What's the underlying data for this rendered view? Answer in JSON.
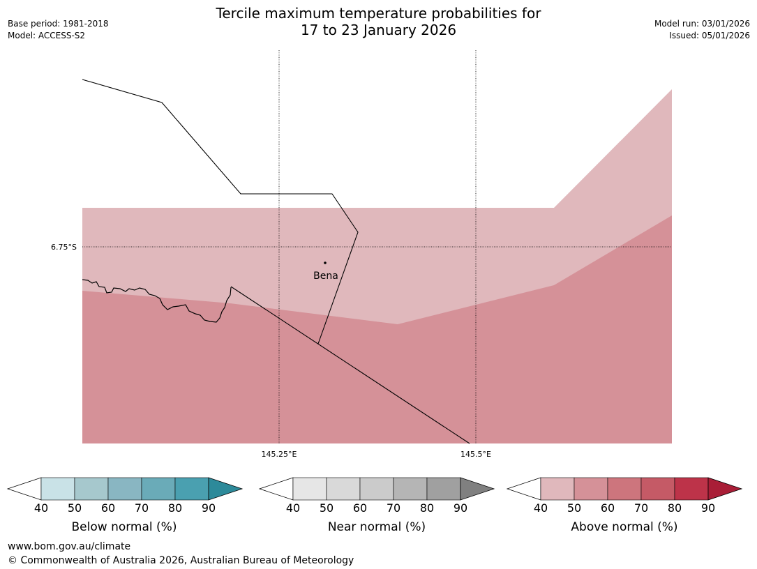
{
  "title_line1": "Tercile maximum temperature probabilities for",
  "title_line2": "17 to 23 January 2026",
  "meta_left": [
    "Base period: 1981-2018",
    "Model: ACCESS-S2"
  ],
  "meta_right": [
    "Model run: 03/01/2026",
    "Issued: 05/01/2026"
  ],
  "map": {
    "lat_label": "6.75°S",
    "lon_labels": [
      "145.25°E",
      "145.5°E"
    ],
    "place_name": "Bena",
    "colors": {
      "above_40_50": "#e0b8bc",
      "above_50_60": "#d59198"
    }
  },
  "colorbars": [
    {
      "title": "Below normal (%)",
      "ticks": [
        "40",
        "50",
        "60",
        "70",
        "80",
        "90"
      ],
      "colors": [
        "#ffffff",
        "#c9e2e7",
        "#a6c8cd",
        "#89b6c2",
        "#6aabb8",
        "#4aa0b0",
        "#2d8a9a"
      ]
    },
    {
      "title": "Near normal (%)",
      "ticks": [
        "40",
        "50",
        "60",
        "70",
        "80",
        "90"
      ],
      "colors": [
        "#ffffff",
        "#e6e6e6",
        "#d9d9d9",
        "#cbcbcb",
        "#b5b5b5",
        "#a0a0a0",
        "#808080"
      ]
    },
    {
      "title": "Above normal (%)",
      "ticks": [
        "40",
        "50",
        "60",
        "70",
        "80",
        "90"
      ],
      "colors": [
        "#ffffff",
        "#e0b8bc",
        "#d59198",
        "#cd757d",
        "#c55a66",
        "#bd3349",
        "#a91e37"
      ]
    }
  ],
  "footer": {
    "url": "www.bom.gov.au/climate",
    "copyright": "© Commonwealth of Australia 2026, Australian Bureau of Meteorology"
  }
}
